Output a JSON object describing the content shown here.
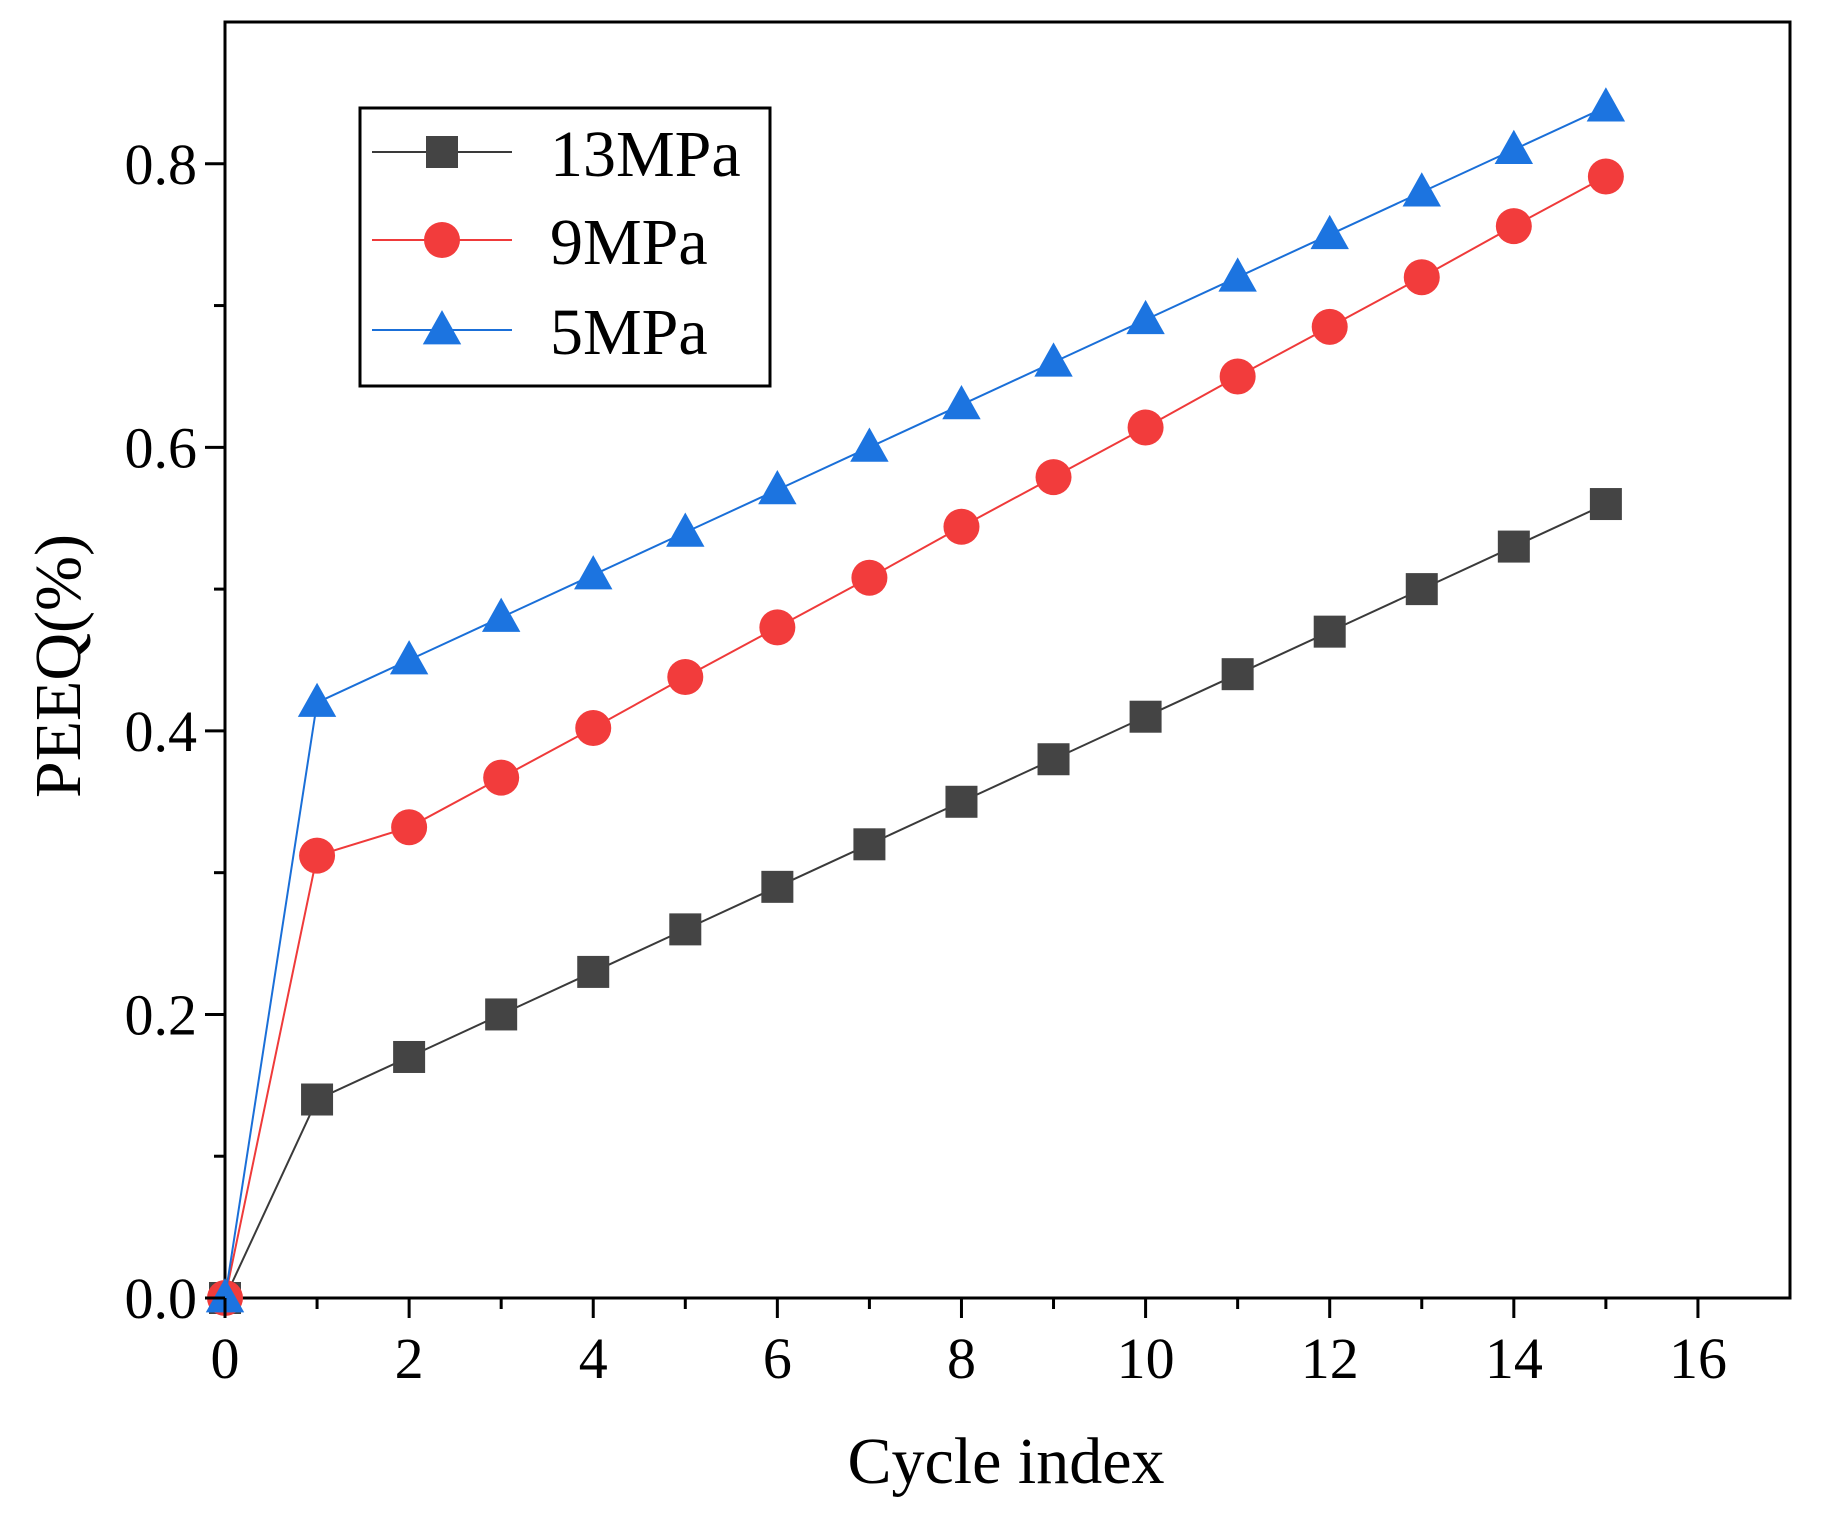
{
  "chart_data": {
    "type": "line",
    "title": "",
    "xlabel": "Cycle index",
    "ylabel": "PEEQ(%)",
    "xlim": [
      0,
      17
    ],
    "ylim": [
      0,
      0.9
    ],
    "x_major_ticks": [
      0,
      2,
      4,
      6,
      8,
      10,
      12,
      14,
      16
    ],
    "x_tick_labels": [
      "0",
      "2",
      "4",
      "6",
      "8",
      "10",
      "12",
      "14",
      "16"
    ],
    "x_minor_ticks": [
      1,
      3,
      5,
      7,
      9,
      11,
      13,
      15
    ],
    "y_major_ticks": [
      0,
      0.2,
      0.4,
      0.6,
      0.8
    ],
    "y_tick_labels": [
      "0.0",
      "0.2",
      "0.4",
      "0.6",
      "0.8"
    ],
    "y_minor_ticks": [
      0.1,
      0.3,
      0.5,
      0.7
    ],
    "grid": false,
    "legend_position": "top-left",
    "x": [
      0,
      1,
      2,
      3,
      4,
      5,
      6,
      7,
      8,
      9,
      10,
      11,
      12,
      13,
      14,
      15
    ],
    "series": [
      {
        "name": "13MPa",
        "marker": "square",
        "line_color": "#3a3a3a",
        "marker_color": "#444444",
        "values": [
          0,
          0.14,
          0.17,
          0.2,
          0.23,
          0.26,
          0.29,
          0.32,
          0.35,
          0.38,
          0.41,
          0.44,
          0.47,
          0.5,
          0.53,
          0.56
        ]
      },
      {
        "name": "9MPa",
        "marker": "circle",
        "line_color": "#ef3a3a",
        "marker_color": "#f23c3c",
        "values": [
          0,
          0.312,
          0.332,
          0.367,
          0.402,
          0.438,
          0.473,
          0.508,
          0.544,
          0.579,
          0.614,
          0.65,
          0.685,
          0.72,
          0.756,
          0.791
        ]
      },
      {
        "name": "5MPa",
        "marker": "triangle",
        "line_color": "#1a6fd8",
        "marker_color": "#1c74e0",
        "values": [
          0,
          0.42,
          0.45,
          0.48,
          0.51,
          0.54,
          0.57,
          0.6,
          0.63,
          0.66,
          0.69,
          0.72,
          0.75,
          0.78,
          0.81,
          0.84
        ]
      }
    ]
  }
}
